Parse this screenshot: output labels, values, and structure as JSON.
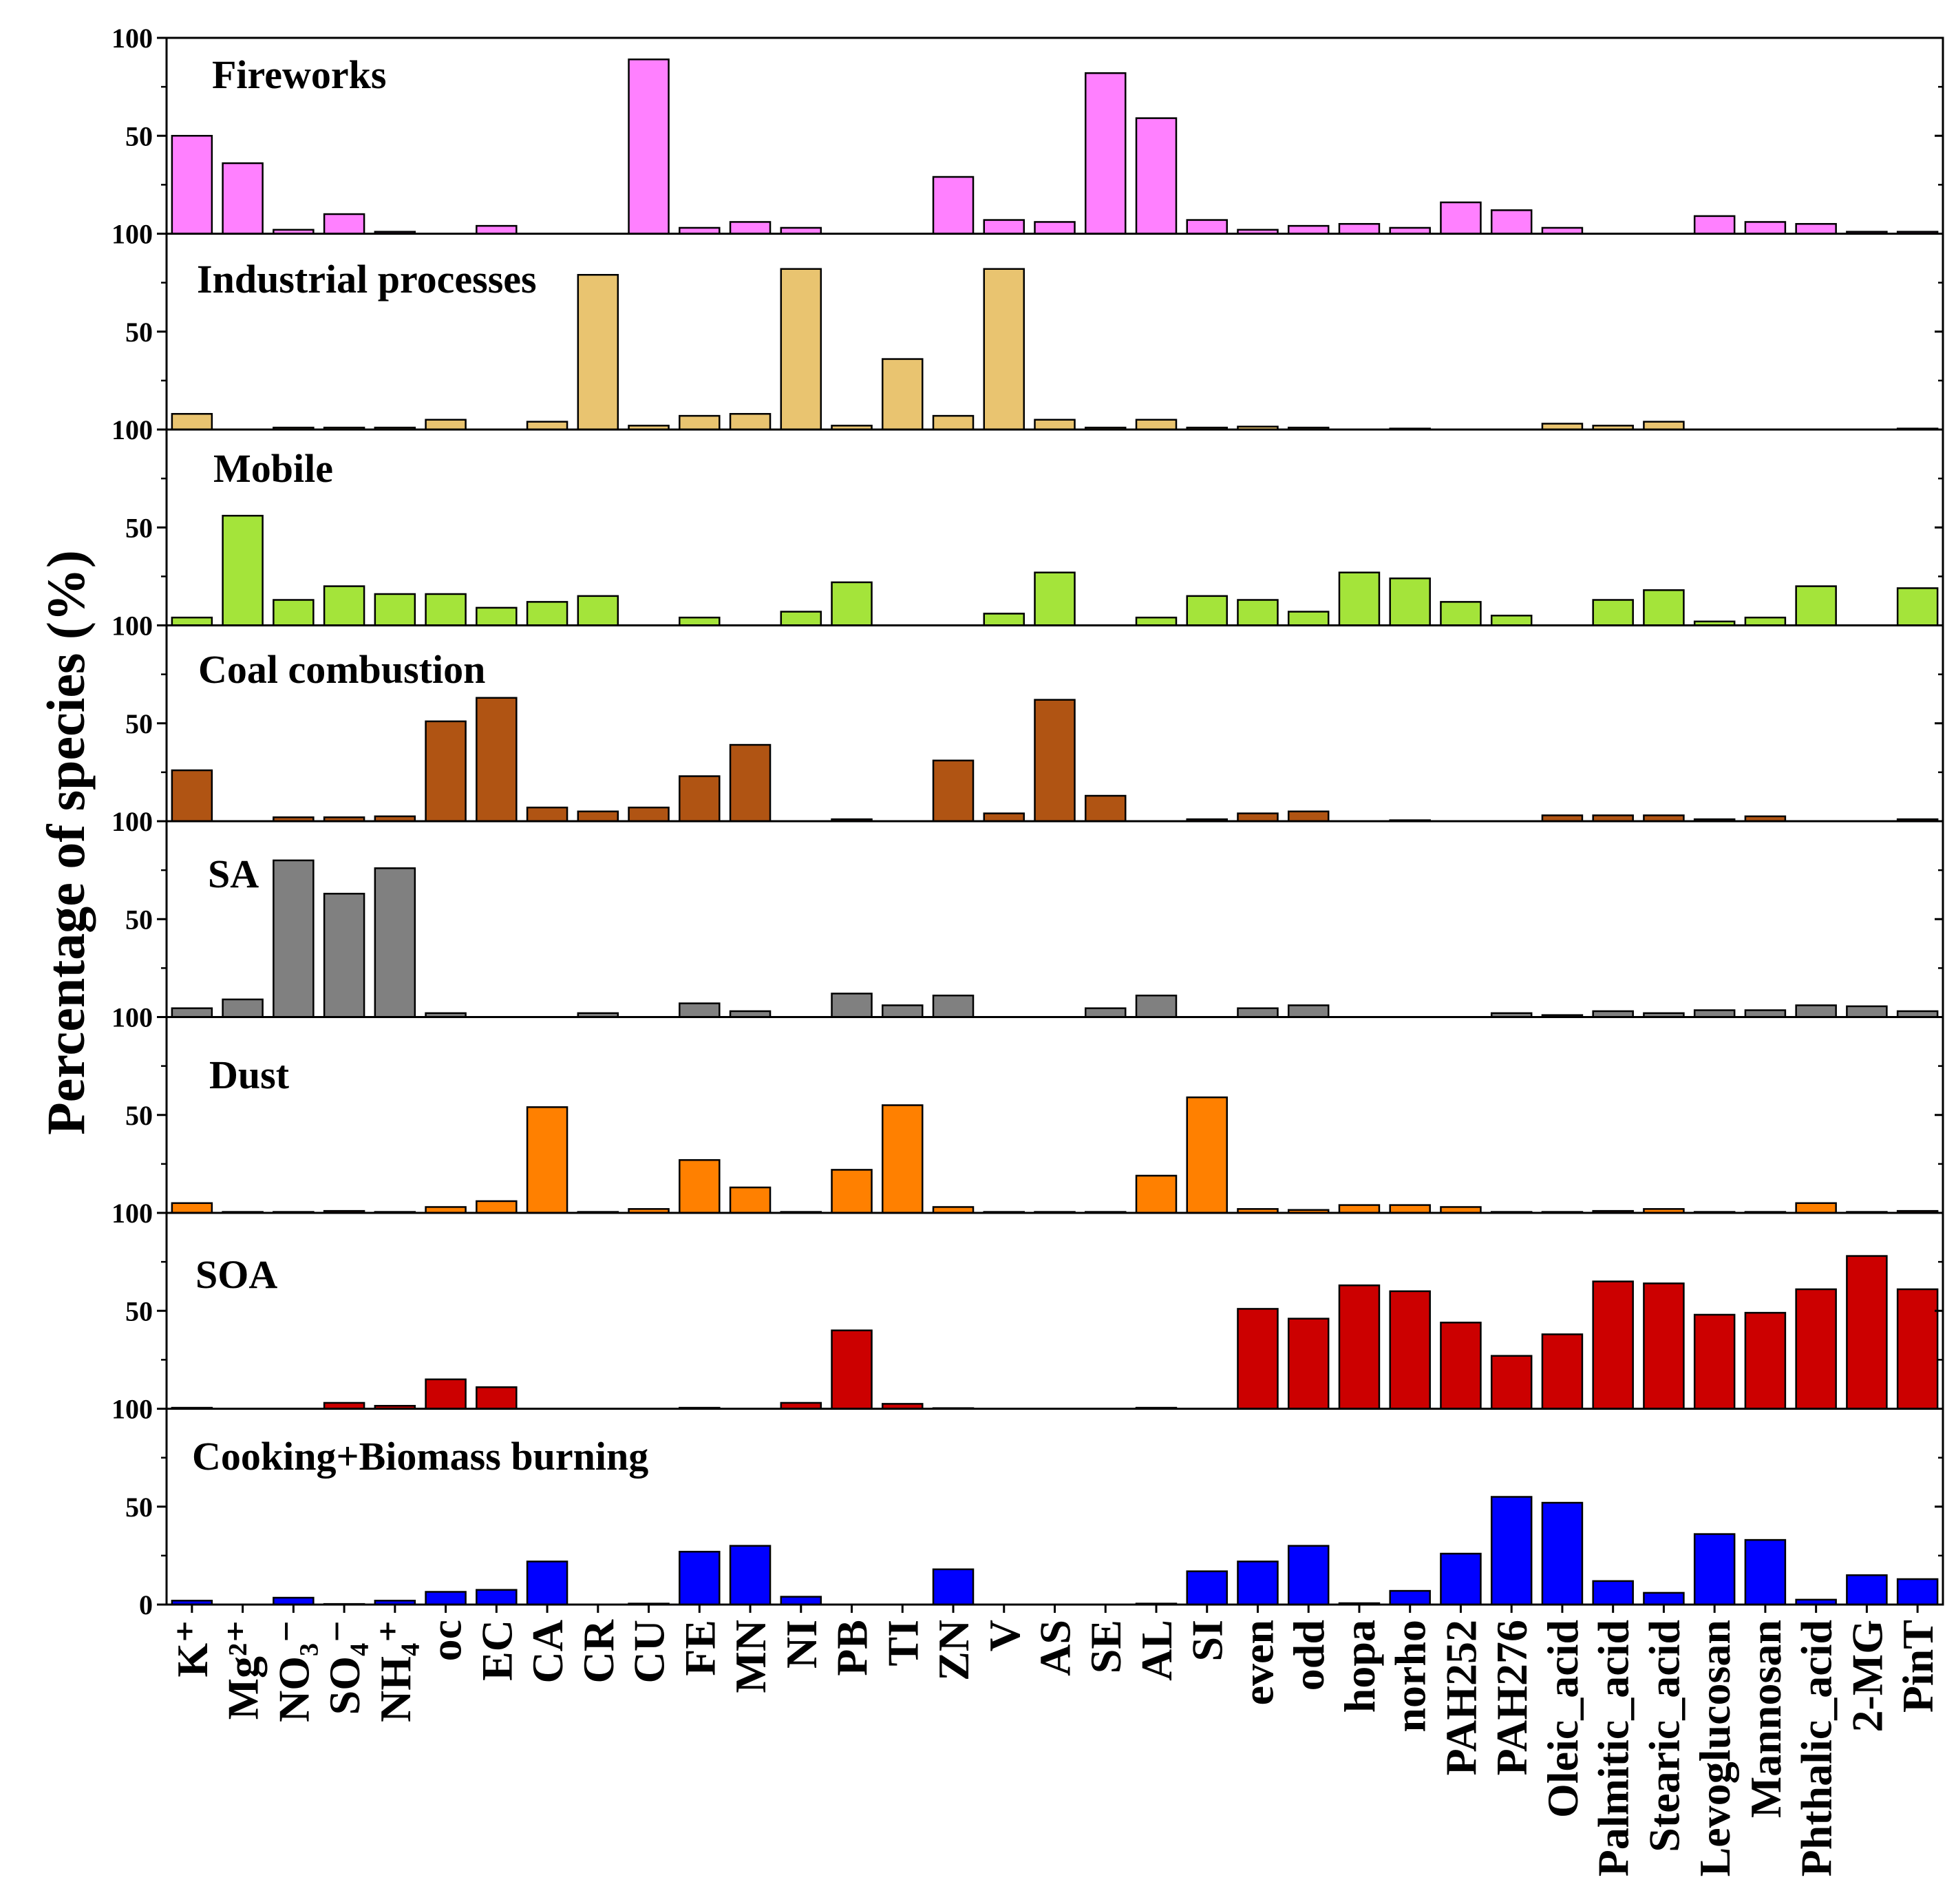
{
  "chart_data": {
    "type": "bar",
    "ylabel": "Percentage of species (%)",
    "xlabel": "",
    "ylim": [
      0,
      100
    ],
    "yticks": [
      0,
      50,
      100
    ],
    "layout": "8 stacked panels sharing the x axis",
    "categories": [
      "K⁺",
      "Mg²⁺",
      "NO₃⁻",
      "SO₄⁻",
      "NH₄⁺",
      "oc",
      "EC",
      "CA",
      "CR",
      "CU",
      "FE",
      "MN",
      "NI",
      "PB",
      "TI",
      "ZN",
      "V",
      "AS",
      "SE",
      "AL",
      "SI",
      "even",
      "odd",
      "hopa",
      "norho",
      "PAH252",
      "PAH276",
      "Oleic_acid",
      "Palmitic_acid",
      "Stearic_acid",
      "Levoglucosan",
      "Mannosan",
      "Phthalic_acid",
      "2-MG",
      "PinT"
    ],
    "series": [
      {
        "name": "Fireworks",
        "color": "#FF80FF",
        "values": [
          50,
          36,
          2,
          10,
          1,
          0,
          4,
          0,
          0,
          89,
          3,
          6,
          3,
          0,
          0,
          29,
          7,
          6,
          82,
          59,
          7,
          2,
          4,
          5,
          3,
          16,
          12,
          3,
          0,
          0,
          9,
          6,
          5,
          1,
          1
        ]
      },
      {
        "name": "Industrial processes",
        "color": "#E9C470",
        "values": [
          8,
          0,
          1,
          1,
          1,
          5,
          0,
          4,
          79,
          2,
          7,
          8,
          82,
          2,
          36,
          7,
          82,
          5,
          1,
          5,
          1,
          1.5,
          1,
          0,
          0.5,
          0,
          0,
          3,
          2,
          4,
          0,
          0,
          0,
          0,
          0.5
        ]
      },
      {
        "name": "Mobile",
        "color": "#A4E43A",
        "values": [
          4,
          56,
          13,
          20,
          16,
          16,
          9,
          12,
          15,
          0,
          4,
          0,
          7,
          22,
          0,
          0,
          6,
          27,
          0,
          4,
          15,
          13,
          7,
          27,
          24,
          12,
          5,
          0,
          13,
          18,
          2,
          4,
          20,
          0,
          19
        ]
      },
      {
        "name": "Coal combustion",
        "color": "#B05413",
        "values": [
          26,
          0,
          2,
          2,
          2.5,
          51,
          63,
          7,
          5,
          7,
          23,
          39,
          0,
          1,
          0,
          31,
          4,
          62,
          13,
          0,
          1,
          4,
          5,
          0,
          0.5,
          0,
          0,
          3,
          3,
          3,
          1,
          2.5,
          0,
          0,
          1
        ]
      },
      {
        "name": "SA",
        "color": "#808080",
        "values": [
          4.5,
          9,
          80,
          63,
          76,
          2,
          0,
          0,
          2,
          0,
          7,
          3,
          0,
          12,
          6,
          11,
          0,
          0,
          4.5,
          11,
          0,
          4.5,
          6,
          0,
          0,
          0,
          2,
          1,
          3,
          2,
          3.5,
          3.5,
          6,
          5.5,
          3
        ]
      },
      {
        "name": "Dust",
        "color": "#FF8000",
        "values": [
          5,
          0.5,
          0.5,
          1,
          0.5,
          3,
          6,
          54,
          0.5,
          2,
          27,
          13,
          0.5,
          22,
          55,
          3,
          0.5,
          0.5,
          0.5,
          19,
          59,
          2,
          1.5,
          4,
          4,
          3,
          0.5,
          0.5,
          1,
          2,
          0.5,
          0.5,
          5,
          0.5,
          1
        ]
      },
      {
        "name": "SOA",
        "color": "#CC0000",
        "values": [
          0.5,
          0,
          0,
          3,
          1.5,
          15,
          11,
          0,
          0,
          0,
          0.5,
          0,
          3,
          40,
          2.5,
          0.3,
          0,
          0,
          0,
          0.5,
          0,
          51,
          46,
          63,
          60,
          44,
          27,
          38,
          65,
          64,
          48,
          49,
          61,
          78,
          61
        ]
      },
      {
        "name": "Cooking+Biomass burning",
        "color": "#0000FF",
        "values": [
          2,
          0,
          3.5,
          0.3,
          2,
          6.5,
          7.5,
          22,
          0,
          0.5,
          27,
          30,
          4,
          0,
          0,
          18,
          0,
          0,
          0,
          0.5,
          17,
          22,
          30,
          0.7,
          7,
          26,
          55,
          52,
          12,
          6,
          36,
          33,
          2.5,
          15,
          13
        ]
      }
    ]
  }
}
